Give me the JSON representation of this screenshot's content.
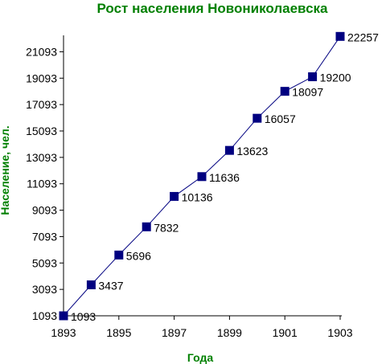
{
  "chart_data": {
    "type": "line",
    "title": "Рост населения Новониколаевска",
    "xlabel": "Года",
    "ylabel": "Население, чел.",
    "x": [
      1893,
      1894,
      1895,
      1896,
      1897,
      1898,
      1899,
      1900,
      1901,
      1902,
      1903
    ],
    "series": [
      {
        "values": [
          1093,
          3437,
          5696,
          7832,
          10136,
          11636,
          13623,
          16057,
          18097,
          19200,
          22257
        ],
        "labels": [
          "1093",
          "3437",
          "5696",
          "7832",
          "10136",
          "11636",
          "13623",
          "16057",
          "18097",
          "19200",
          "22257"
        ]
      }
    ],
    "xlim": [
      1893,
      1903
    ],
    "ylim": [
      1093,
      22093
    ],
    "x_ticks": [
      "1893",
      "1895",
      "1897",
      "1899",
      "1901",
      "1903"
    ],
    "y_ticks": [
      "1093",
      "3093",
      "5093",
      "7093",
      "9093",
      "11093",
      "13093",
      "15093",
      "17093",
      "19093",
      "21093"
    ],
    "grid": false,
    "legend": "none",
    "colors": {
      "title": "#008000",
      "axis_title": "#008000",
      "marker": "#000080",
      "line": "#000080",
      "axis": "#000000"
    }
  }
}
